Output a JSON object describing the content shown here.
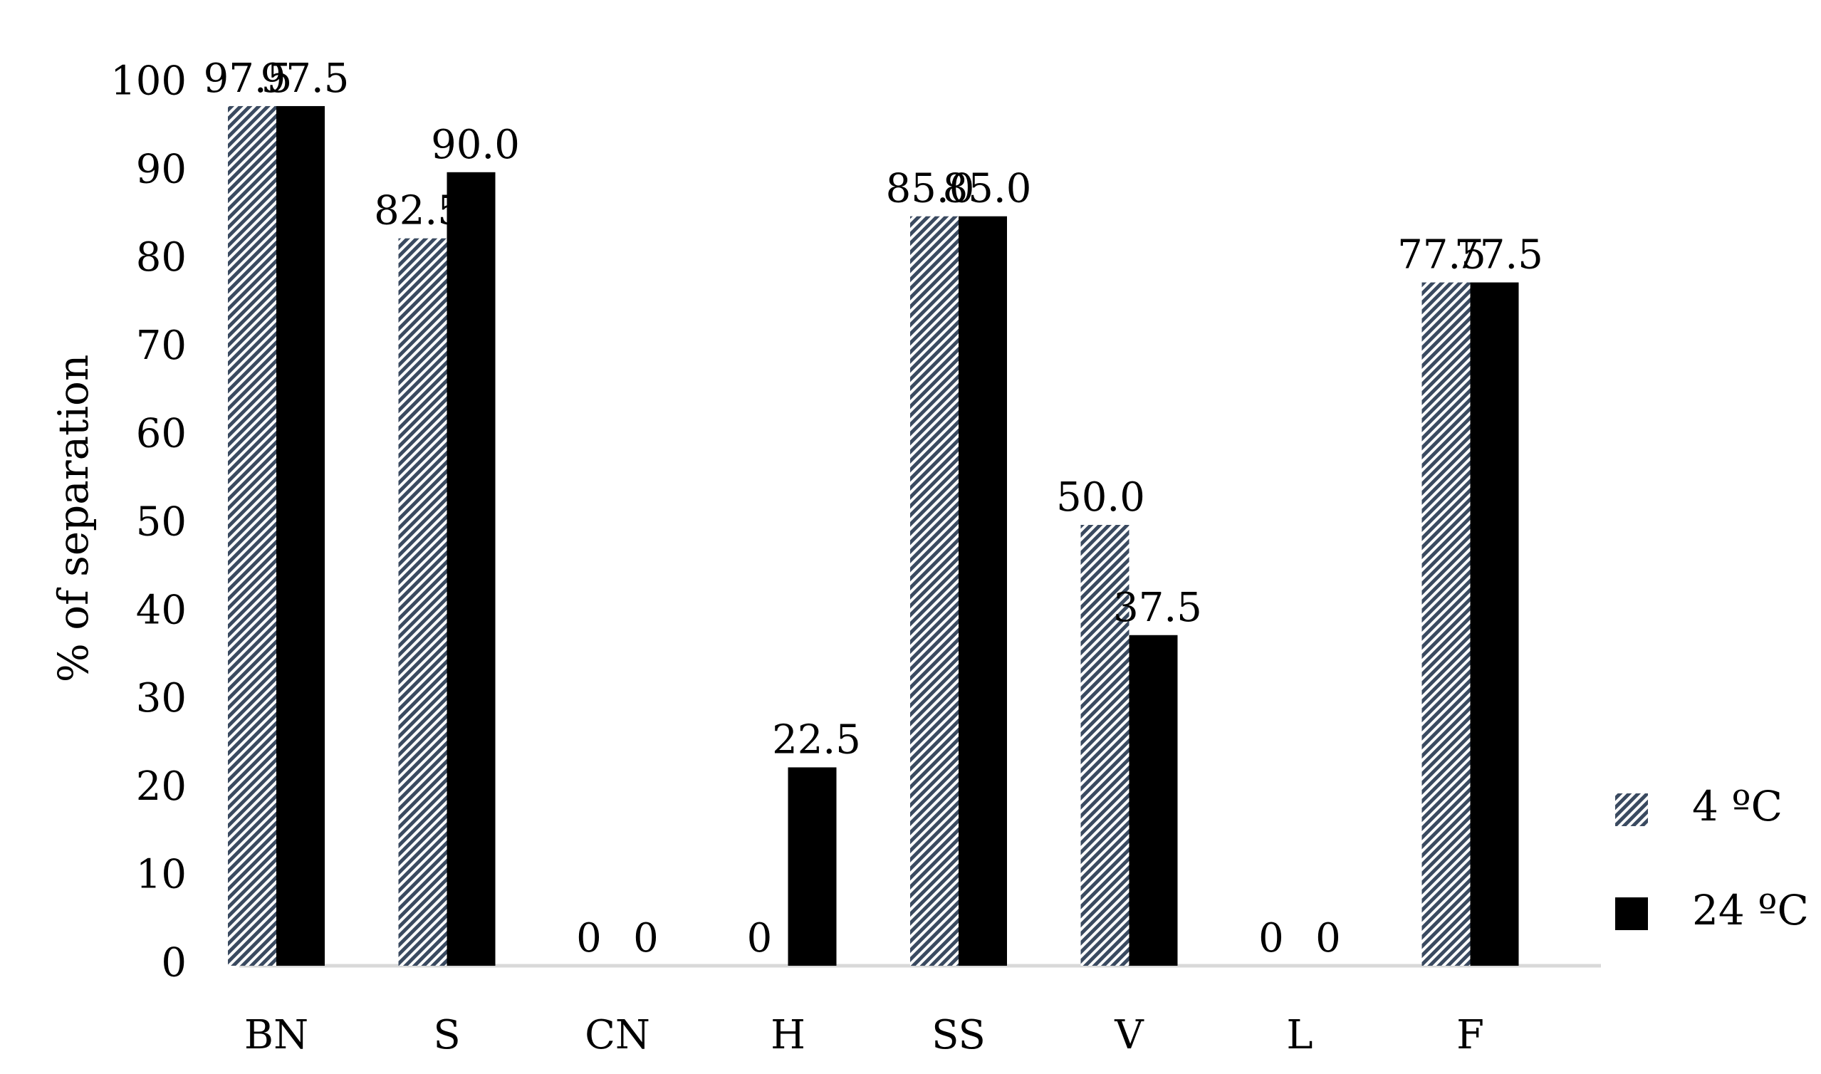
{
  "chart_data": {
    "type": "bar",
    "title": "",
    "xlabel": "",
    "ylabel": "% of separation",
    "ylim": [
      0,
      100
    ],
    "yticks": [
      0,
      10,
      20,
      30,
      40,
      50,
      60,
      70,
      80,
      90,
      100
    ],
    "grid": false,
    "legend_position": "bottom-right",
    "categories": [
      "BN",
      "S",
      "CN",
      "H",
      "SS",
      "V",
      "L",
      "F"
    ],
    "series": [
      {
        "name": "4 ºC",
        "pattern": "diagonal-hatch",
        "color": "#3a4a60",
        "values": [
          97.5,
          82.5,
          0,
          0,
          85.0,
          50.0,
          0,
          77.5
        ],
        "labels": [
          "97.5",
          "82.5",
          "0",
          "0",
          "85.0",
          "50.0",
          "0",
          "77.5"
        ]
      },
      {
        "name": "24 ºC",
        "pattern": "solid",
        "color": "#000000",
        "values": [
          97.5,
          90.0,
          0,
          22.5,
          85.0,
          37.5,
          0,
          77.5
        ],
        "labels": [
          "97.5",
          "90.0",
          "0",
          "22.5",
          "85.0",
          "37.5",
          "0",
          "77.5"
        ]
      }
    ],
    "axis_color": "#d9d9d9"
  }
}
